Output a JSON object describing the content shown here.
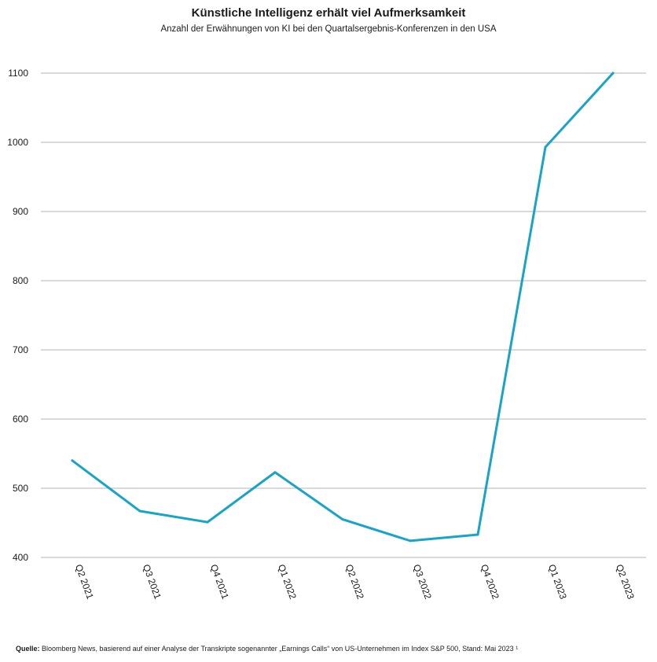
{
  "chart_data": {
    "type": "line",
    "title": "Künstliche Intelligenz erhält viel Aufmerksamkeit",
    "subtitle": "Anzahl der Erwähnungen von KI bei den Quartalsergebnis-Konferenzen in den USA",
    "categories": [
      "Q2 2021",
      "Q3 2021",
      "Q4 2021",
      "Q1 2022",
      "Q2 2022",
      "Q3 2022",
      "Q4 2022",
      "Q1 2023",
      "Q2 2023"
    ],
    "series": [
      {
        "values": [
          540,
          467,
          451,
          523,
          455,
          424,
          433,
          993,
          1100
        ]
      }
    ],
    "yticks": [
      400,
      500,
      600,
      700,
      800,
      900,
      1000,
      1100
    ],
    "ylim": [
      400,
      1100
    ],
    "grid": true,
    "line_color": "#1aa3c9",
    "grid_color": "#b3b3b3"
  },
  "source": {
    "label": "Quelle:",
    "text": "Bloomberg News, basierend auf einer Analyse der Transkripte sogenannter „Earnings Calls“ von US-Unternehmen im Index S&P 500, Stand: Mai 2023 ¹"
  }
}
